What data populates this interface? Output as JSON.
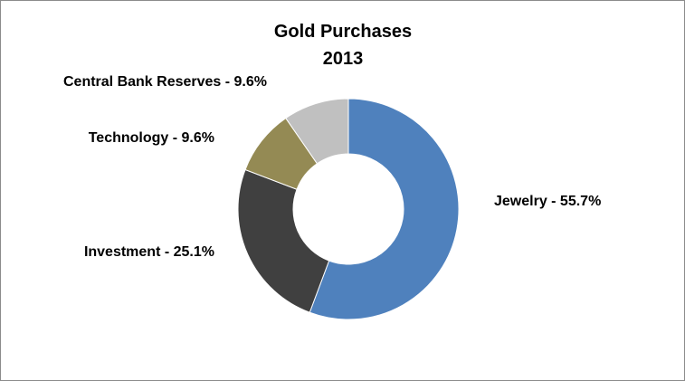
{
  "chart_data": {
    "type": "pie",
    "donut": true,
    "title_lines": [
      "Gold Purchases",
      "2013"
    ],
    "categories": [
      "Jewelry",
      "Investment",
      "Technology",
      "Central Bank Reserves"
    ],
    "values": [
      55.7,
      25.1,
      9.6,
      9.6
    ],
    "labels": [
      "Jewelry - 55.7%",
      "Investment - 25.1%",
      "Technology - 9.6%",
      "Central Bank Reserves - 9.6%"
    ],
    "colors": [
      "#4f81bd",
      "#404040",
      "#948a54",
      "#c0c0c0"
    ],
    "start_angle": "12 o'clock",
    "direction": "clockwise",
    "legend": "none"
  }
}
